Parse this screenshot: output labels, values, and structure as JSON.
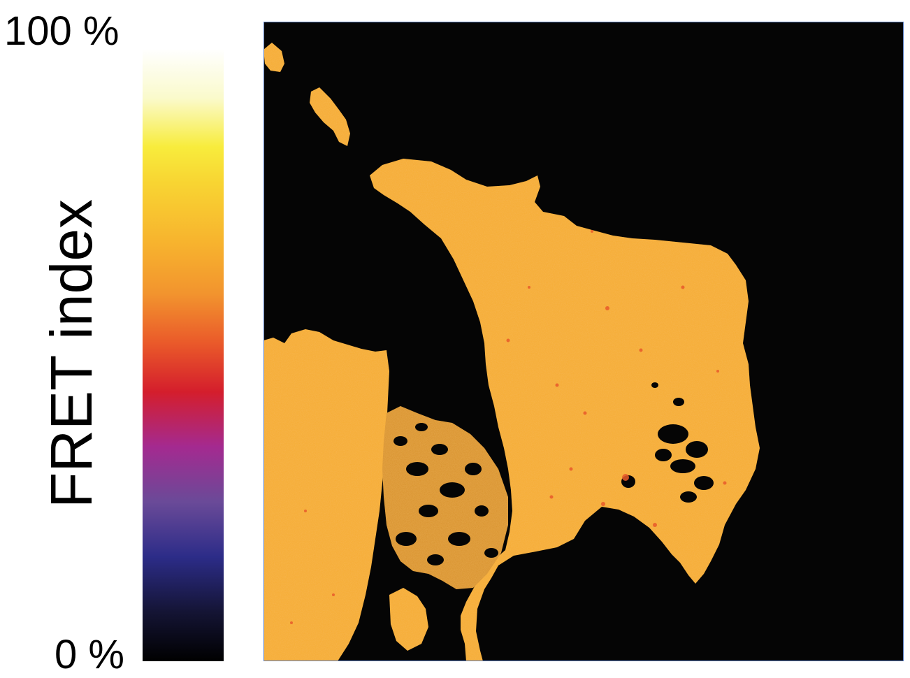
{
  "colorbar": {
    "max_label": "100 %",
    "min_label": "0 %",
    "title": "FRET index",
    "stops": [
      "#000000",
      "#141434",
      "#2c2c88",
      "#6a4a98",
      "#a42a90",
      "#d41e2c",
      "#ea5a2a",
      "#f2942e",
      "#f7b22e",
      "#f8d432",
      "#f8ec3c",
      "#fafacc",
      "#ffffff"
    ]
  },
  "image": {
    "background_color": "#050505",
    "cell_color": "#f6ac30",
    "speckle_color": "#e85a2a"
  }
}
